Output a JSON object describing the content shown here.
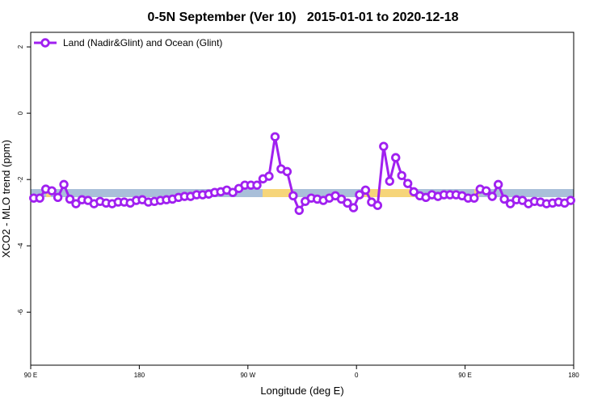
{
  "chart_data": {
    "type": "line",
    "title": "0-5N September (Ver 10)   2015-01-01 to 2020-12-18",
    "x_label": "Longitude (deg E)",
    "y_label": "XCO2 - MLO trend (ppm)",
    "xlim": [
      90,
      540
    ],
    "xticks": [
      {
        "value": 90,
        "label": "90 E"
      },
      {
        "value": 180,
        "label": "180"
      },
      {
        "value": 270,
        "label": "90 W"
      },
      {
        "value": 360,
        "label": "0"
      },
      {
        "value": 450,
        "label": "90 E"
      },
      {
        "value": 540,
        "label": "180"
      }
    ],
    "ylim": [
      -7.6,
      2.44
    ],
    "yticks": [
      2,
      0,
      -2,
      -4,
      -6
    ],
    "legend": "topleft",
    "x": [
      92.5,
      97.5,
      102.5,
      107.5,
      112.5,
      117.5,
      122.5,
      127.5,
      132.5,
      137.5,
      142.5,
      147.5,
      152.5,
      157.5,
      162.5,
      167.5,
      172.5,
      177.5,
      182.5,
      187.5,
      192.5,
      197.5,
      202.5,
      207.5,
      212.5,
      217.5,
      222.5,
      227.5,
      232.5,
      237.5,
      242.5,
      247.5,
      252.5,
      257.5,
      262.5,
      267.5,
      272.5,
      277.5,
      282.5,
      287.5,
      292.5,
      297.5,
      302.5,
      307.5,
      312.5,
      317.5,
      322.5,
      327.5,
      332.5,
      337.5,
      342.5,
      347.5,
      352.5,
      357.5,
      362.5,
      367.5,
      372.5,
      377.5,
      382.5,
      387.5,
      392.5,
      397.5,
      402.5,
      407.5,
      412.5,
      417.5,
      422.5,
      427.5,
      432.5,
      437.5,
      442.5,
      447.5,
      452.5,
      457.5,
      462.5,
      467.5,
      472.5,
      477.5,
      482.5,
      487.5,
      492.5,
      497.5,
      502.5,
      507.5,
      512.5,
      517.5,
      522.5,
      527.5,
      532.5,
      537.5
    ],
    "series": [
      {
        "name": "Land (Nadir&Glint) and Ocean (Glint)",
        "color": "#a020f0",
        "values": [
          -2.56,
          -2.56,
          -2.29,
          -2.34,
          -2.54,
          -2.15,
          -2.59,
          -2.73,
          -2.61,
          -2.63,
          -2.73,
          -2.66,
          -2.71,
          -2.73,
          -2.68,
          -2.68,
          -2.71,
          -2.63,
          -2.61,
          -2.68,
          -2.66,
          -2.63,
          -2.61,
          -2.59,
          -2.54,
          -2.51,
          -2.51,
          -2.46,
          -2.46,
          -2.44,
          -2.39,
          -2.37,
          -2.32,
          -2.39,
          -2.27,
          -2.17,
          -2.17,
          -2.17,
          -1.98,
          -1.9,
          -0.71,
          -1.68,
          -1.76,
          -2.49,
          -2.93,
          -2.66,
          -2.56,
          -2.59,
          -2.63,
          -2.56,
          -2.49,
          -2.59,
          -2.71,
          -2.85,
          -2.46,
          -2.32,
          -2.68,
          -2.78,
          -1.0,
          -2.05,
          -1.34,
          -1.88,
          -2.12,
          -2.37,
          -2.49,
          -2.54,
          -2.46,
          -2.51,
          -2.46,
          -2.46,
          -2.46,
          -2.49,
          -2.56,
          -2.56,
          -2.29,
          -2.34,
          -2.51,
          -2.15,
          -2.59,
          -2.73,
          -2.61,
          -2.63,
          -2.73,
          -2.66,
          -2.68,
          -2.73,
          -2.71,
          -2.68,
          -2.71,
          -2.63
        ]
      }
    ]
  }
}
